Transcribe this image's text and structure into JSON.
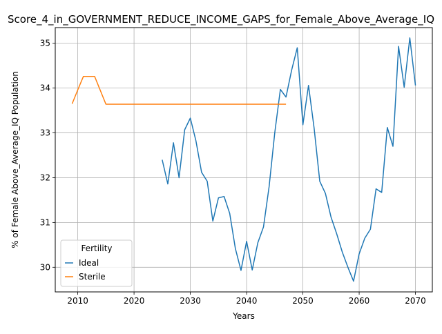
{
  "chart_data": {
    "type": "line",
    "title": "Score_4_in_GOVERNMENT_REDUCE_INCOME_GAPS_for_Female_Above_Average_IQ",
    "xlabel": "Years",
    "ylabel": "% of Female Above_Average_IQ Population",
    "xlim": [
      2006,
      2073
    ],
    "ylim": [
      29.45,
      35.35
    ],
    "x_ticks": [
      2010,
      2020,
      2030,
      2040,
      2050,
      2060,
      2070
    ],
    "y_ticks": [
      30,
      31,
      32,
      33,
      34,
      35
    ],
    "grid": true,
    "legend": {
      "title": "Fertility",
      "placement": "lower-left"
    },
    "series": [
      {
        "name": "Ideal",
        "color": "#1f77b4",
        "x": [
          2025,
          2026,
          2027,
          2028,
          2029,
          2030,
          2031,
          2032,
          2033,
          2034,
          2035,
          2036,
          2037,
          2038,
          2039,
          2040,
          2041,
          2042,
          2043,
          2044,
          2045,
          2046,
          2047,
          2048,
          2049,
          2050,
          2051,
          2052,
          2053,
          2054,
          2055,
          2056,
          2057,
          2058,
          2059,
          2060,
          2061,
          2062,
          2063,
          2064,
          2065,
          2066,
          2067,
          2068,
          2069,
          2070
        ],
        "values": [
          32.4,
          31.86,
          32.78,
          32.0,
          33.07,
          33.33,
          32.82,
          32.12,
          31.92,
          31.03,
          31.55,
          31.58,
          31.2,
          30.42,
          29.93,
          30.58,
          29.94,
          30.55,
          30.9,
          31.8,
          33.0,
          33.97,
          33.8,
          34.4,
          34.9,
          33.18,
          34.06,
          33.1,
          31.92,
          31.65,
          31.12,
          30.75,
          30.34,
          30.0,
          29.69,
          30.3,
          30.65,
          30.85,
          31.75,
          31.67,
          33.12,
          32.7,
          34.93,
          34.02,
          35.12,
          34.06
        ]
      },
      {
        "name": "Sterile",
        "color": "#ff7f0e",
        "x": [
          2009,
          2010,
          2011,
          2012,
          2013,
          2014,
          2015,
          2016,
          2017,
          2018,
          2019,
          2020,
          2021,
          2022,
          2023,
          2024,
          2025,
          2026,
          2027,
          2028,
          2029,
          2030,
          2031,
          2032,
          2033,
          2034,
          2035,
          2036,
          2037,
          2038,
          2039,
          2040,
          2041,
          2042,
          2043,
          2044,
          2045,
          2046,
          2047
        ],
        "values": [
          33.65,
          33.96,
          34.26,
          34.26,
          34.26,
          33.95,
          33.64,
          33.64,
          33.64,
          33.64,
          33.64,
          33.64,
          33.64,
          33.64,
          33.64,
          33.64,
          33.64,
          33.64,
          33.64,
          33.64,
          33.64,
          33.64,
          33.64,
          33.64,
          33.64,
          33.64,
          33.64,
          33.64,
          33.64,
          33.64,
          33.64,
          33.64,
          33.64,
          33.64,
          33.64,
          33.64,
          33.64,
          33.64,
          33.64
        ]
      }
    ]
  }
}
